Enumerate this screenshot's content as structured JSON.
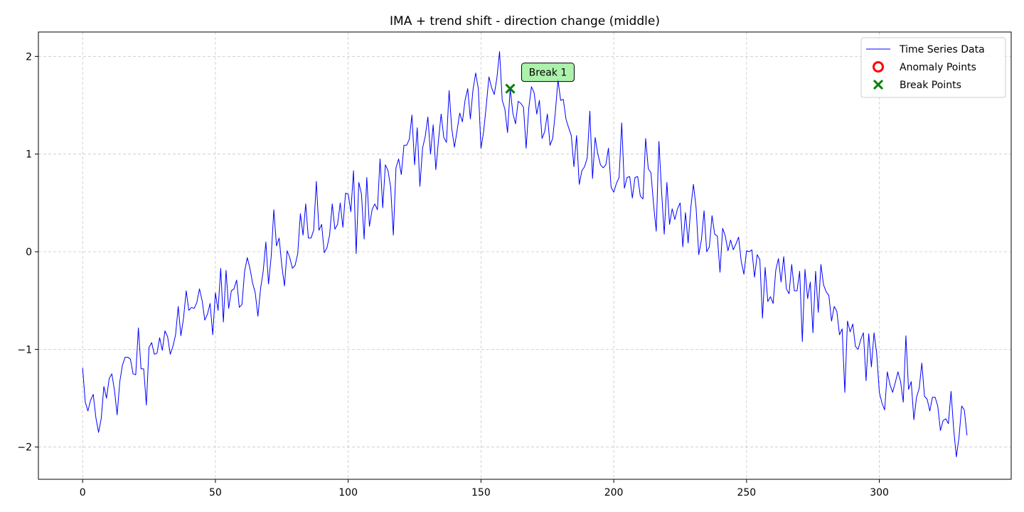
{
  "chart_data": {
    "type": "line",
    "title": "IMA + trend shift - direction change (middle)",
    "xlabel": "",
    "ylabel": "",
    "xlim": [
      -16.65,
      349.65
    ],
    "ylim": [
      -2.33,
      2.25
    ],
    "x_ticks": [
      0,
      50,
      100,
      150,
      200,
      250,
      300
    ],
    "y_ticks": [
      -2,
      -1,
      0,
      1,
      2
    ],
    "x_tick_labels": [
      "0",
      "50",
      "100",
      "150",
      "200",
      "250",
      "300"
    ],
    "y_tick_labels": [
      "−2",
      "−1",
      "0",
      "1",
      "2"
    ],
    "grid": true,
    "legend_position": "top-right",
    "colors": {
      "series": "#0000ff",
      "anomaly": "#ff0000",
      "break": "#008000",
      "break_label_bg": "#90ee90"
    },
    "series": [
      {
        "name": "Time Series Data",
        "x_start": 0,
        "x_step": 1,
        "values": [
          -1.19,
          -1.54,
          -1.63,
          -1.52,
          -1.46,
          -1.7,
          -1.85,
          -1.71,
          -1.38,
          -1.5,
          -1.3,
          -1.25,
          -1.42,
          -1.67,
          -1.33,
          -1.16,
          -1.08,
          -1.08,
          -1.1,
          -1.25,
          -1.26,
          -0.78,
          -1.2,
          -1.2,
          -1.57,
          -0.98,
          -0.93,
          -1.05,
          -1.04,
          -0.88,
          -1.01,
          -0.81,
          -0.87,
          -1.05,
          -0.97,
          -0.85,
          -0.56,
          -0.86,
          -0.68,
          -0.4,
          -0.6,
          -0.57,
          -0.58,
          -0.52,
          -0.38,
          -0.5,
          -0.7,
          -0.64,
          -0.53,
          -0.85,
          -0.42,
          -0.6,
          -0.17,
          -0.72,
          -0.19,
          -0.58,
          -0.4,
          -0.38,
          -0.29,
          -0.57,
          -0.54,
          -0.2,
          -0.06,
          -0.17,
          -0.32,
          -0.42,
          -0.66,
          -0.38,
          -0.2,
          0.1,
          -0.33,
          -0.05,
          0.43,
          0.06,
          0.14,
          -0.14,
          -0.35,
          0.01,
          -0.06,
          -0.17,
          -0.14,
          -0.02,
          0.39,
          0.17,
          0.49,
          0.14,
          0.14,
          0.22,
          0.72,
          0.22,
          0.28,
          -0.01,
          0.04,
          0.17,
          0.49,
          0.23,
          0.28,
          0.5,
          0.25,
          0.6,
          0.59,
          0.41,
          0.83,
          -0.02,
          0.71,
          0.59,
          0.13,
          0.76,
          0.26,
          0.43,
          0.49,
          0.43,
          0.95,
          0.45,
          0.89,
          0.83,
          0.66,
          0.17,
          0.86,
          0.95,
          0.79,
          1.09,
          1.09,
          1.15,
          1.4,
          0.89,
          1.27,
          0.67,
          1.06,
          1.18,
          1.38,
          1.0,
          1.3,
          0.84,
          1.14,
          1.41,
          1.17,
          1.12,
          1.65,
          1.26,
          1.07,
          1.24,
          1.42,
          1.33,
          1.55,
          1.67,
          1.36,
          1.66,
          1.83,
          1.67,
          1.06,
          1.23,
          1.5,
          1.79,
          1.68,
          1.61,
          1.78,
          2.05,
          1.55,
          1.46,
          1.22,
          1.67,
          1.42,
          1.31,
          1.54,
          1.52,
          1.48,
          1.06,
          1.47,
          1.69,
          1.63,
          1.41,
          1.55,
          1.16,
          1.23,
          1.41,
          1.09,
          1.16,
          1.43,
          1.76,
          1.55,
          1.56,
          1.36,
          1.27,
          1.19,
          0.87,
          1.19,
          0.69,
          0.83,
          0.87,
          0.96,
          1.44,
          0.75,
          1.17,
          1.0,
          0.89,
          0.86,
          0.89,
          1.06,
          0.66,
          0.61,
          0.7,
          0.76,
          1.32,
          0.65,
          0.76,
          0.77,
          0.55,
          0.76,
          0.77,
          0.57,
          0.54,
          1.16,
          0.85,
          0.81,
          0.48,
          0.21,
          1.13,
          0.62,
          0.18,
          0.71,
          0.28,
          0.44,
          0.33,
          0.44,
          0.5,
          0.05,
          0.4,
          0.09,
          0.45,
          0.69,
          0.45,
          -0.03,
          0.12,
          0.42,
          0.0,
          0.05,
          0.37,
          0.18,
          0.16,
          -0.21,
          0.24,
          0.16,
          0.01,
          0.12,
          0.02,
          0.08,
          0.15,
          -0.1,
          -0.23,
          0.01,
          0.0,
          0.02,
          -0.26,
          -0.03,
          -0.08,
          -0.68,
          -0.16,
          -0.51,
          -0.46,
          -0.53,
          -0.19,
          -0.07,
          -0.31,
          -0.05,
          -0.38,
          -0.43,
          -0.13,
          -0.4,
          -0.4,
          -0.2,
          -0.92,
          -0.18,
          -0.48,
          -0.31,
          -0.83,
          -0.2,
          -0.62,
          -0.13,
          -0.34,
          -0.41,
          -0.45,
          -0.71,
          -0.56,
          -0.61,
          -0.85,
          -0.79,
          -1.44,
          -0.71,
          -0.82,
          -0.74,
          -0.97,
          -1.0,
          -0.9,
          -0.83,
          -1.32,
          -0.84,
          -1.18,
          -0.83,
          -1.04,
          -1.44,
          -1.55,
          -1.62,
          -1.23,
          -1.36,
          -1.44,
          -1.34,
          -1.23,
          -1.33,
          -1.54,
          -0.86,
          -1.41,
          -1.33,
          -1.72,
          -1.49,
          -1.4,
          -1.14,
          -1.48,
          -1.51,
          -1.63,
          -1.49,
          -1.49,
          -1.58,
          -1.83,
          -1.73,
          -1.71,
          -1.76,
          -1.43,
          -1.82,
          -2.1,
          -1.9,
          -1.58,
          -1.62,
          -1.88
        ]
      },
      {
        "name": "Anomaly Points",
        "points": []
      },
      {
        "name": "Break Points",
        "points": [
          {
            "x": 161,
            "y": 1.67
          }
        ]
      }
    ],
    "annotations": [
      {
        "text": "Break 1",
        "x": 161,
        "y": 1.67
      }
    ]
  }
}
